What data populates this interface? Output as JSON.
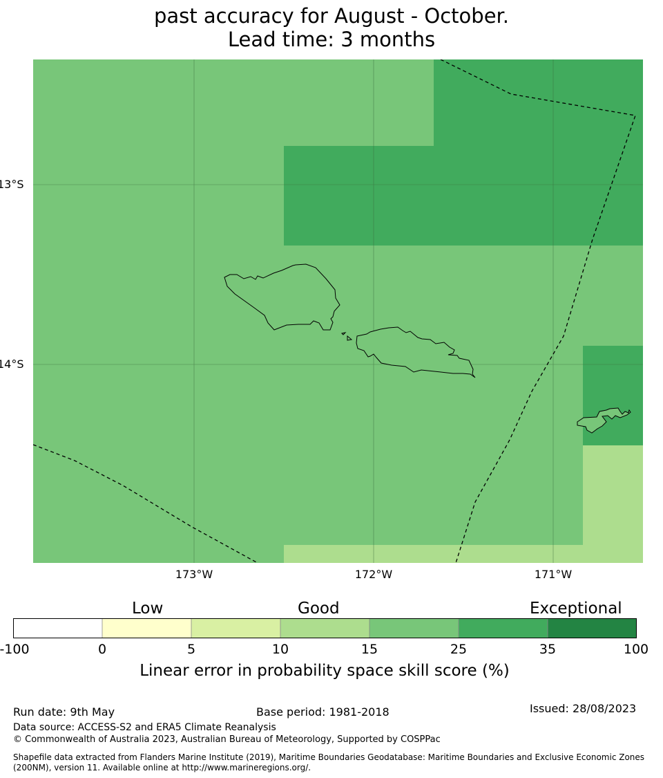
{
  "title": {
    "line1": "past accuracy for August - October.",
    "line2": "Lead time: 3 months"
  },
  "map": {
    "lat_labels": [
      "13°S",
      "14°S"
    ],
    "lon_labels": [
      "173°W",
      "172°W",
      "171°W"
    ],
    "colors": {
      "skill_15_25": "#78c679",
      "skill_25_35": "#41ab5d",
      "skill_10_15": "#addd8e",
      "gridline": "#3a6b3a",
      "coastline": "#000000",
      "eez_boundary": "#000000"
    },
    "regions": [
      {
        "range": "15-25",
        "description": "base field"
      },
      {
        "range": "25-35",
        "area": "north-east"
      },
      {
        "range": "25-35",
        "area": "east near islands"
      },
      {
        "range": "10-15",
        "area": "south edge"
      },
      {
        "range": "10-15",
        "area": "south-east corner"
      }
    ]
  },
  "colorbar": {
    "category_labels": [
      "Low",
      "Good",
      "Exceptional"
    ],
    "tick_labels": [
      "-100",
      "0",
      "5",
      "10",
      "15",
      "25",
      "35",
      "100"
    ],
    "segment_colors": [
      "#ffffff",
      "#ffffcc",
      "#d9f0a3",
      "#addd8e",
      "#78c679",
      "#41ab5d",
      "#238443"
    ],
    "xlabel": "Linear error in probability space skill score (%)"
  },
  "footer": {
    "run_date": "Run date: 9th May",
    "base_period": "Base period: 1981-2018",
    "issued": "Issued: 28/08/2023",
    "data_source": "Data source: ACCESS-S2 and ERA5 Climate Reanalysis",
    "copyright": "© Commonwealth of Australia 2023, Australian Bureau of Meteorology, Supported by COSPPac",
    "shapefile_note": "Shapefile data extracted from Flanders Marine Institute (2019), Maritime Boundaries Geodatabase: Maritime Boundaries and Exclusive Economic Zones (200NM), version 11. Available online at http://www.marineregions.org/."
  }
}
